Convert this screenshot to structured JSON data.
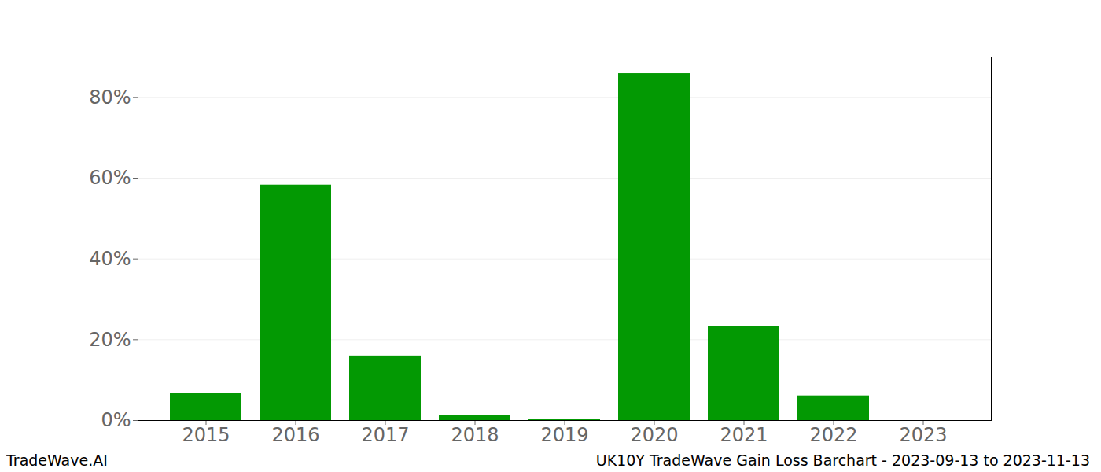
{
  "chart_data": {
    "type": "bar",
    "title": "UK10Y TradeWave Gain Loss Barchart - 2023-09-13 to 2023-11-13",
    "annotations": [
      "TradeWave.AI"
    ],
    "categories": [
      "2015",
      "2016",
      "2017",
      "2018",
      "2019",
      "2020",
      "2021",
      "2022",
      "2023"
    ],
    "values": [
      6.7,
      58.3,
      16.0,
      1.2,
      0.3,
      85.9,
      23.2,
      6.1,
      0
    ],
    "color": "#039903",
    "ylim": [
      0,
      90
    ],
    "yticks": [
      {
        "value": 0,
        "label": "0%"
      },
      {
        "value": 20,
        "label": "20%"
      },
      {
        "value": 40,
        "label": "40%"
      },
      {
        "value": 60,
        "label": "60%"
      },
      {
        "value": 80,
        "label": "80%"
      }
    ],
    "grid": true
  }
}
